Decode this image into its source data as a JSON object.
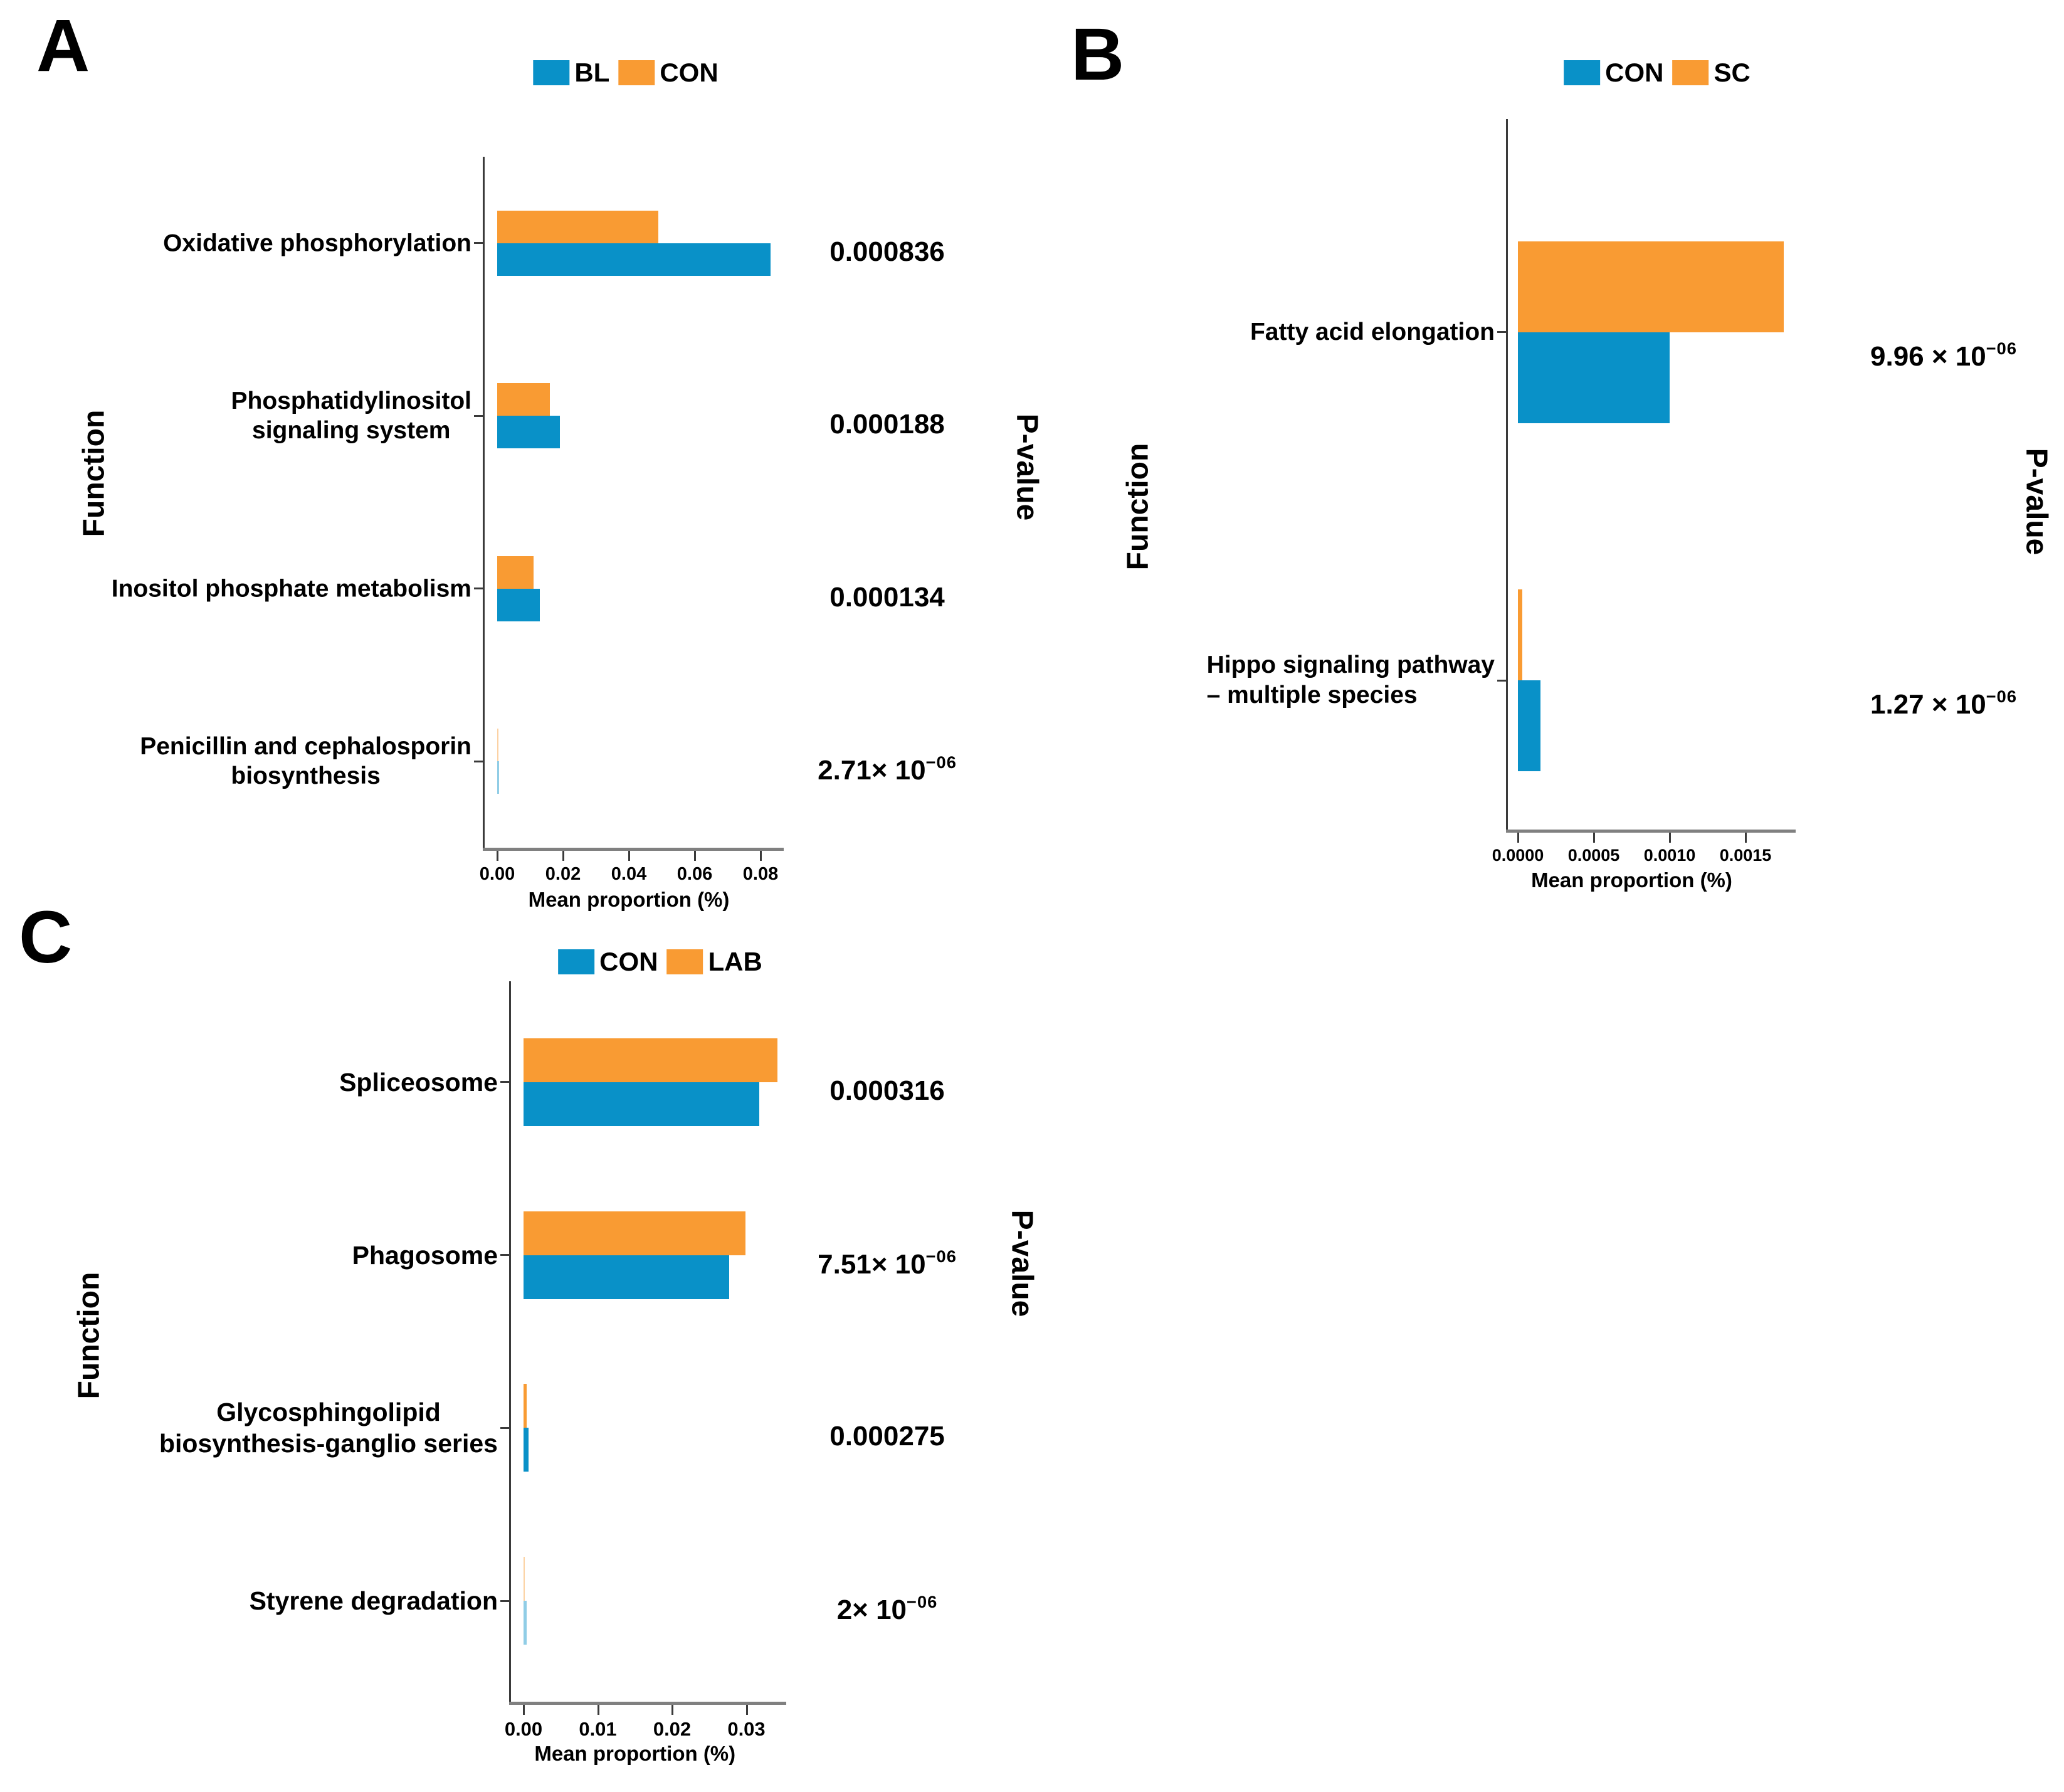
{
  "figure_title": "",
  "chart_data": [
    {
      "type": "bar",
      "orientation": "horizontal",
      "panel_letter": "A",
      "series": [
        {
          "name": "BL",
          "color": "#0991C8",
          "values": [
            0.083,
            0.019,
            0.013,
            0.0006
          ]
        },
        {
          "name": "CON",
          "color": "#F99B33",
          "values": [
            0.049,
            0.016,
            0.011,
            0.0004
          ]
        }
      ],
      "categories": [
        "Oxidative phosphorylation",
        "Phosphatidylinositol signaling system",
        "Inositol phosphate metabolism",
        "Penicillin and cephalosporin biosynthesis"
      ],
      "category_lines": [
        [
          "Oxidative phosphorylation"
        ],
        [
          "Phosphatidylinositol",
          "signaling system"
        ],
        [
          "Inositol phosphate metabolism"
        ],
        [
          "Penicillin and cephalosporin",
          "biosynthesis"
        ]
      ],
      "category_align": [
        "center",
        "center",
        "center",
        "center"
      ],
      "p_values": [
        {
          "base": "0.000836",
          "sup": ""
        },
        {
          "base": "0.000188",
          "sup": ""
        },
        {
          "base": "0.000134",
          "sup": ""
        },
        {
          "base": "2.71× 10",
          "sup": "−06"
        }
      ],
      "faded_rows": [
        3
      ],
      "xlabel": "Mean proportion (%)",
      "ylabel": "Function",
      "right_axis_label": "P-value",
      "x_tick_labels": [
        "0.00",
        "0.02",
        "0.04",
        "0.06",
        "0.08"
      ],
      "x_tick_values": [
        0,
        0.02,
        0.04,
        0.06,
        0.08
      ],
      "xlim": [
        0,
        0.0865
      ],
      "legend_position": "top",
      "grid": false
    },
    {
      "type": "bar",
      "orientation": "horizontal",
      "panel_letter": "B",
      "series": [
        {
          "name": "CON",
          "color": "#0991C8",
          "values": [
            0.001,
            0.00015
          ]
        },
        {
          "name": "SC",
          "color": "#F99B33",
          "values": [
            0.00175,
            3e-05
          ]
        }
      ],
      "categories": [
        "Fatty acid elongation",
        "Hippo signaling pathway – multiple species"
      ],
      "category_lines": [
        [
          "Fatty acid elongation"
        ],
        [
          "Hippo signaling pathway",
          "– multiple species"
        ]
      ],
      "category_align": [
        "center",
        "left"
      ],
      "p_values": [
        {
          "base": "9.96 × 10",
          "sup": "−06"
        },
        {
          "base": "1.27 × 10",
          "sup": "−06"
        }
      ],
      "faded_rows": [],
      "xlabel": "Mean proportion (%)",
      "ylabel": "Function",
      "right_axis_label": "P-value",
      "x_tick_labels": [
        "0.0000",
        "0.0005",
        "0.0010",
        "0.0015"
      ],
      "x_tick_values": [
        0,
        0.0005,
        0.001,
        0.0015
      ],
      "xlim": [
        0,
        0.00183
      ],
      "legend_position": "top",
      "grid": false
    },
    {
      "type": "bar",
      "orientation": "horizontal",
      "panel_letter": "C",
      "series": [
        {
          "name": "CON",
          "color": "#0991C8",
          "values": [
            0.0317,
            0.0277,
            0.0007,
            0.0004
          ]
        },
        {
          "name": "LAB",
          "color": "#F99B33",
          "values": [
            0.0342,
            0.0299,
            0.0004,
            0.0002
          ]
        }
      ],
      "categories": [
        "Spliceosome",
        "Phagosome",
        "Glycosphingolipid biosynthesis-ganglio series",
        "Styrene degradation"
      ],
      "category_lines": [
        [
          "Spliceosome"
        ],
        [
          "Phagosome"
        ],
        [
          "Glycosphingolipid",
          "biosynthesis-ganglio series"
        ],
        [
          "Styrene degradation"
        ]
      ],
      "category_align": [
        "center",
        "center",
        "center",
        "center"
      ],
      "p_values": [
        {
          "base": "0.000316",
          "sup": ""
        },
        {
          "base": "7.51× 10",
          "sup": "−06"
        },
        {
          "base": "0.000275",
          "sup": ""
        },
        {
          "base": "2× 10",
          "sup": "−06"
        }
      ],
      "faded_rows": [
        3
      ],
      "xlabel": "Mean proportion (%)",
      "ylabel": "Function",
      "right_axis_label": "P-value",
      "x_tick_labels": [
        "0.00",
        "0.01",
        "0.02",
        "0.03"
      ],
      "x_tick_values": [
        0,
        0.01,
        0.02,
        0.03
      ],
      "xlim": [
        0,
        0.0354
      ],
      "legend_position": "top",
      "grid": false
    }
  ]
}
